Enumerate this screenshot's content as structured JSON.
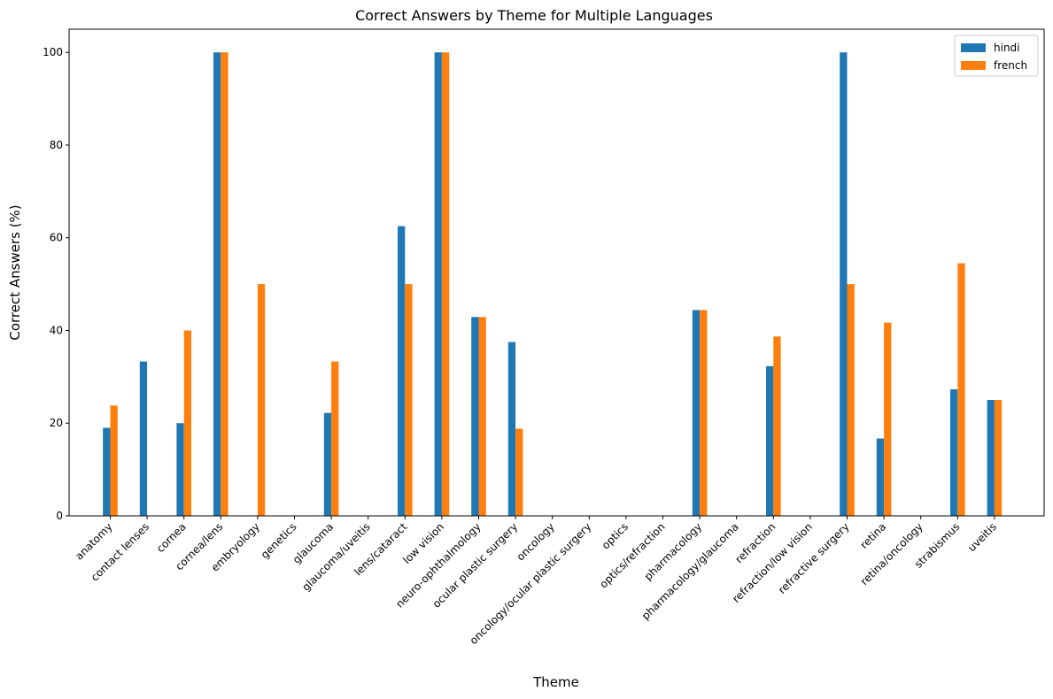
{
  "chart_data": {
    "type": "bar",
    "title": "Correct Answers by Theme for Multiple Languages",
    "xlabel": "Theme",
    "ylabel": "Correct Answers (%)",
    "ylim": [
      0,
      105
    ],
    "yticks": [
      0,
      20,
      40,
      60,
      80,
      100
    ],
    "legend_position": "top-right",
    "categories": [
      "anatomy",
      "contact lenses",
      "cornea",
      "cornea/lens",
      "embryology",
      "genetics",
      "glaucoma",
      "glaucoma/uveitis",
      "lens/cataract",
      "low vision",
      "neuro-ophthalmology",
      "ocular plastic surgery",
      "oncology",
      "oncology/ocular plastic surgery",
      "optics",
      "optics/refraction",
      "pharmacology",
      "pharmacology/glaucoma",
      "refraction",
      "refraction/low vision",
      "refractive surgery",
      "retina",
      "retina/oncology",
      "strabismus",
      "uveitis"
    ],
    "series": [
      {
        "name": "hindi",
        "color": "#1f77b4",
        "values": [
          19.0,
          33.3,
          20.0,
          100,
          0,
          0,
          22.2,
          0,
          62.5,
          100,
          42.9,
          37.5,
          0,
          0,
          0,
          0,
          44.4,
          0,
          32.3,
          0,
          100,
          16.7,
          0,
          27.3,
          25.0
        ]
      },
      {
        "name": "french",
        "color": "#ff7f0e",
        "values": [
          23.8,
          0,
          40.0,
          100,
          50.0,
          0,
          33.3,
          0,
          50.0,
          100,
          42.9,
          18.8,
          0,
          0,
          0,
          0,
          44.4,
          0,
          38.7,
          0,
          50.0,
          41.7,
          0,
          54.5,
          25.0
        ]
      }
    ]
  }
}
